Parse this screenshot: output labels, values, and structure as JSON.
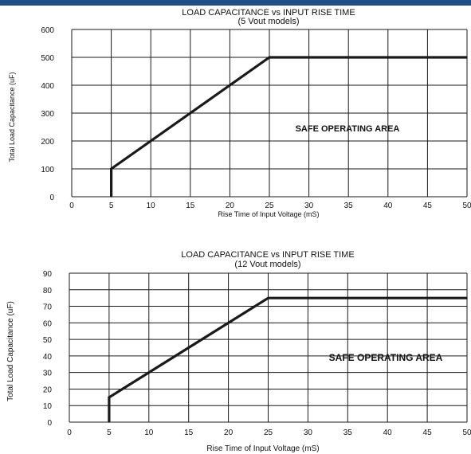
{
  "chart_data": [
    {
      "type": "line",
      "title": "LOAD CAPACITANCE vs INPUT RISE TIME",
      "subtitle": "(5 Vout models)",
      "xlabel": "Rise Time of Input Voltage (mS)",
      "ylabel": "Total Load Capacitance (uF)",
      "xlim": [
        0,
        50
      ],
      "ylim": [
        0,
        600
      ],
      "xticks": [
        0,
        5,
        10,
        15,
        20,
        25,
        30,
        35,
        40,
        45,
        50
      ],
      "yticks": [
        0,
        100,
        200,
        300,
        400,
        500,
        600
      ],
      "grid": true,
      "annotation": "SAFE OPERATING AREA",
      "series": [
        {
          "x": [
            5,
            5,
            25,
            50
          ],
          "y": [
            0,
            100,
            500,
            500
          ]
        }
      ]
    },
    {
      "type": "line",
      "title": "LOAD CAPACITANCE vs INPUT RISE TIME",
      "subtitle": "(12 Vout models)",
      "xlabel": "Rise Time of Input Voltage (mS)",
      "ylabel": "Total Load Capacitance (uF)",
      "xlim": [
        0,
        50
      ],
      "ylim": [
        0,
        90
      ],
      "xticks": [
        0,
        5,
        10,
        15,
        20,
        25,
        30,
        35,
        40,
        45,
        50
      ],
      "yticks": [
        0,
        10,
        20,
        30,
        40,
        50,
        60,
        70,
        80,
        90
      ],
      "grid": true,
      "annotation": "SAFE OPERATING AREA",
      "series": [
        {
          "x": [
            5,
            5,
            25,
            50
          ],
          "y": [
            0,
            15,
            75,
            75
          ]
        }
      ]
    }
  ],
  "colors": {
    "top_bar": "#1f4f86",
    "line": "#1a1a1a",
    "grid": "#1a1a1a"
  }
}
